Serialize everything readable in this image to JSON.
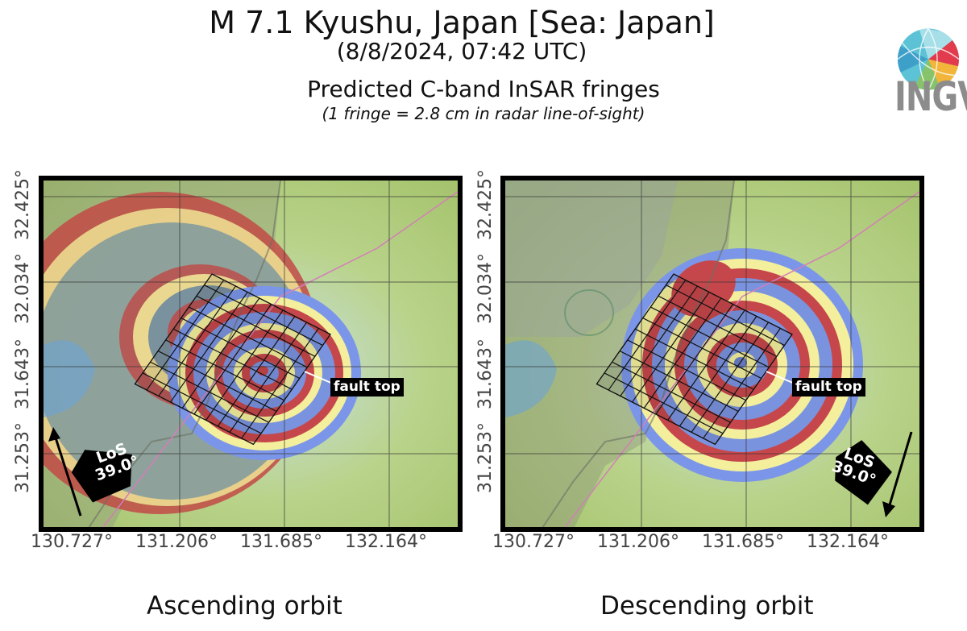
{
  "header": {
    "title": "M 7.1 Kyushu, Japan [Sea: Japan]",
    "datetime": "(8/8/2024, 07:42 UTC)",
    "subtitle": "Predicted C-band InSAR fringes",
    "note": "(1 fringe = 2.8 cm in radar line-of-sight)"
  },
  "logo": {
    "text": "INGV",
    "icon": "ingv-globe-icon"
  },
  "axes": {
    "y_ticks": [
      "31.253°",
      "31.643°",
      "32.034°",
      "32.425°"
    ],
    "x_ticks": [
      "130.727°",
      "131.206°",
      "131.685°",
      "132.164°"
    ]
  },
  "panels": [
    {
      "name": "ascending",
      "orbit_label": "Ascending orbit",
      "los_label": "LoS",
      "los_angle": "39.0°",
      "fault_label": "fault top"
    },
    {
      "name": "descending",
      "orbit_label": "Descending orbit",
      "los_label": "LoS",
      "los_angle": "39.0°",
      "fault_label": "fault top"
    }
  ],
  "colors": {
    "fringe_red": "#c8484a",
    "fringe_blue": "#7b96e8",
    "fringe_yellow": "#f4ee9a",
    "background_green": "#a3c46a",
    "fault_grid": "#111111"
  }
}
